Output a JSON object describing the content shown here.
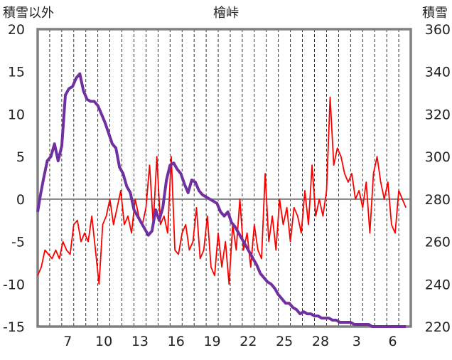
{
  "chart_data": {
    "type": "line",
    "title": "檜峠",
    "ylabel_left": "積雪以外",
    "ylabel_right": "積雪",
    "x_tick_labels": [
      "7",
      "10",
      "13",
      "16",
      "19",
      "22",
      "25",
      "28",
      "3",
      "6"
    ],
    "x_tick_positions": [
      2.5,
      5.5,
      8.5,
      11.5,
      14.5,
      17.5,
      20.5,
      23.5,
      26.5,
      29.5
    ],
    "xlim": [
      0,
      31
    ],
    "y_left": {
      "ylim": [
        -15,
        20
      ],
      "ticks": [
        20,
        15,
        10,
        5,
        0,
        -5,
        -10,
        -15
      ]
    },
    "y_right": {
      "ylim": [
        220,
        360
      ],
      "ticks": [
        360,
        340,
        320,
        300,
        280,
        260,
        240,
        220
      ]
    },
    "grid": "vertical-dashed-daily",
    "zero_line": true,
    "series": [
      {
        "axis": "left",
        "color": "#ff0000",
        "x": [
          0.0,
          0.3,
          0.6,
          0.9,
          1.2,
          1.5,
          1.8,
          2.1,
          2.4,
          2.7,
          3.0,
          3.3,
          3.6,
          3.9,
          4.2,
          4.5,
          4.8,
          5.1,
          5.4,
          5.7,
          6.0,
          6.3,
          6.6,
          6.9,
          7.2,
          7.5,
          7.8,
          8.1,
          8.4,
          8.7,
          9.0,
          9.3,
          9.6,
          9.9,
          10.2,
          10.5,
          10.8,
          11.1,
          11.4,
          11.7,
          12.0,
          12.3,
          12.6,
          12.9,
          13.2,
          13.5,
          13.8,
          14.1,
          14.4,
          14.7,
          15.0,
          15.3,
          15.6,
          15.9,
          16.2,
          16.5,
          16.8,
          17.1,
          17.4,
          17.7,
          18.0,
          18.3,
          18.6,
          18.9,
          19.2,
          19.5,
          19.8,
          20.1,
          20.4,
          20.7,
          21.0,
          21.3,
          21.6,
          21.9,
          22.2,
          22.5,
          22.8,
          23.1,
          23.4,
          23.7,
          24.0,
          24.3,
          24.6,
          24.9,
          25.2,
          25.5,
          25.8,
          26.1,
          26.4,
          26.7,
          27.0,
          27.3,
          27.6,
          27.9,
          28.2,
          28.5,
          28.8,
          29.1,
          29.4,
          29.7,
          30.0,
          30.3,
          30.6
        ],
        "values": [
          -9,
          -8,
          -6,
          -6.5,
          -7,
          -6,
          -7,
          -5,
          -6,
          -6.5,
          -3,
          -2.5,
          -5,
          -4,
          -5,
          -2,
          -6,
          -10,
          -3,
          -2,
          0,
          -3,
          -1,
          1,
          -3,
          -2,
          -4,
          0,
          -2,
          -3,
          -1,
          4,
          -3,
          5,
          -3,
          -2,
          -4,
          5,
          -6,
          -6.5,
          -4,
          -3,
          -6,
          -5,
          -1,
          -7,
          -6,
          -2,
          -8,
          -9,
          -4,
          -8,
          -5,
          -10,
          -3,
          -6,
          0,
          -6,
          -4,
          -8,
          -3,
          -6,
          -7,
          3,
          -5,
          -2,
          -6,
          0,
          -3,
          -1,
          -5,
          -1,
          -2,
          -4,
          1,
          -3,
          4,
          -2,
          0,
          -2,
          1,
          12,
          4,
          6,
          5,
          3,
          2,
          3,
          0,
          1,
          -1,
          2,
          -4,
          3,
          5,
          2,
          0,
          2,
          -3,
          -4,
          1,
          0,
          -1
        ]
      },
      {
        "axis": "right",
        "color": "#7030a0",
        "x": [
          0.0,
          0.2,
          0.5,
          0.8,
          1.1,
          1.4,
          1.7,
          2.0,
          2.3,
          2.6,
          2.9,
          3.2,
          3.5,
          3.8,
          4.1,
          4.4,
          4.7,
          5.0,
          5.3,
          5.6,
          5.9,
          6.2,
          6.5,
          6.8,
          7.1,
          7.4,
          7.7,
          8.0,
          8.3,
          8.6,
          8.9,
          9.2,
          9.5,
          9.8,
          10.1,
          10.4,
          10.7,
          11.0,
          11.3,
          11.6,
          11.9,
          12.2,
          12.5,
          12.8,
          13.1,
          13.4,
          13.7,
          14.0,
          14.3,
          14.6,
          14.9,
          15.2,
          15.5,
          15.8,
          16.1,
          16.4,
          16.7,
          17.0,
          17.3,
          17.6,
          17.9,
          18.2,
          18.5,
          18.8,
          19.1,
          19.4,
          19.7,
          20.0,
          20.3,
          20.6,
          20.9,
          21.2,
          21.5,
          21.8,
          22.1,
          22.4,
          22.7,
          23.0,
          23.3,
          23.6,
          23.9,
          24.2,
          24.5,
          24.8,
          25.1,
          25.4,
          25.7,
          26.0,
          26.3,
          26.6,
          26.9,
          27.2,
          27.5,
          27.8,
          28.1,
          28.5,
          28.8,
          29.1,
          29.4,
          29.7,
          30.0,
          30.3,
          30.6
        ],
        "values": [
          274,
          281,
          290,
          298,
          300,
          306,
          298,
          305,
          329,
          332,
          333,
          337,
          339,
          331,
          327,
          326,
          326,
          324,
          320,
          316,
          311,
          306,
          304,
          295,
          292,
          286,
          283,
          275,
          272,
          269,
          266,
          263,
          265,
          275,
          270,
          276,
          289,
          296,
          297,
          294,
          292,
          287,
          283,
          289,
          288,
          284,
          282,
          281,
          280,
          279,
          278,
          274,
          272,
          274,
          269,
          267,
          264,
          261,
          258,
          255,
          252,
          249,
          245,
          243,
          241,
          240,
          238,
          235,
          233,
          231,
          231,
          229,
          228,
          226,
          227,
          226,
          226,
          225,
          225,
          224,
          224,
          224,
          223,
          223,
          222,
          222,
          222,
          222,
          221,
          221,
          221,
          221,
          221,
          220,
          220,
          220,
          220,
          220,
          220,
          220,
          220,
          220,
          220
        ]
      }
    ]
  }
}
